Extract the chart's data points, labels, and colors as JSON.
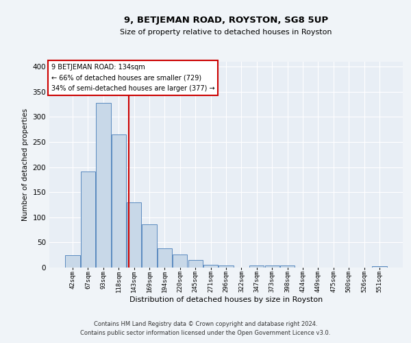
{
  "title": "9, BETJEMAN ROAD, ROYSTON, SG8 5UP",
  "subtitle": "Size of property relative to detached houses in Royston",
  "xlabel": "Distribution of detached houses by size in Royston",
  "ylabel": "Number of detached properties",
  "bin_labels": [
    "42sqm",
    "67sqm",
    "93sqm",
    "118sqm",
    "143sqm",
    "169sqm",
    "194sqm",
    "220sqm",
    "245sqm",
    "271sqm",
    "296sqm",
    "322sqm",
    "347sqm",
    "373sqm",
    "398sqm",
    "424sqm",
    "449sqm",
    "475sqm",
    "500sqm",
    "526sqm",
    "551sqm"
  ],
  "bar_heights": [
    25,
    192,
    328,
    265,
    130,
    86,
    38,
    26,
    15,
    6,
    4,
    0,
    4,
    4,
    4,
    0,
    0,
    0,
    0,
    0,
    3
  ],
  "bar_color": "#c8d8e8",
  "bar_edge_color": "#5a8abf",
  "annotation_line_label": "9 BETJEMAN ROAD: 134sqm",
  "annotation_text_line2": "← 66% of detached houses are smaller (729)",
  "annotation_text_line3": "34% of semi-detached houses are larger (377) →",
  "annotation_box_color": "#ffffff",
  "annotation_box_edge": "#cc0000",
  "red_line_color": "#cc0000",
  "ylim": [
    0,
    410
  ],
  "yticks": [
    0,
    50,
    100,
    150,
    200,
    250,
    300,
    350,
    400
  ],
  "background_color": "#e8eef5",
  "grid_color": "#ffffff",
  "footer_line1": "Contains HM Land Registry data © Crown copyright and database right 2024.",
  "footer_line2": "Contains public sector information licensed under the Open Government Licence v3.0."
}
